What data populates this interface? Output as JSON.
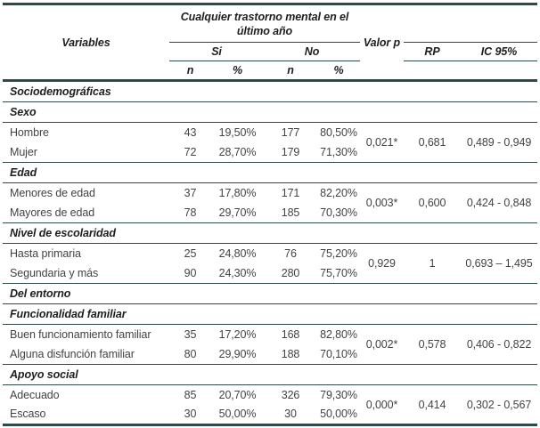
{
  "header": {
    "variables": "Variables",
    "group_title": "Cualquier trastorno mental en el último año",
    "si_label": "Si",
    "no_label": "No",
    "n_label": "n",
    "pct_label": "%",
    "valor_p_label": "Valor p",
    "rp_label": "RP",
    "ic_label": "IC 95%"
  },
  "rows": {
    "sec_sociodemograficas": "Sociodemográficas",
    "sec_sexo": "Sexo",
    "sexo": {
      "r1": {
        "label": "Hombre",
        "si_n": "43",
        "si_pct": "19,50%",
        "no_n": "177",
        "no_pct": "80,50%"
      },
      "r2": {
        "label": "Mujer",
        "si_n": "72",
        "si_pct": "28,70%",
        "no_n": "179",
        "no_pct": "71,30%"
      },
      "p": "0,021*",
      "rp": "0,681",
      "ic": "0,489 - 0,949"
    },
    "sec_edad": "Edad",
    "edad": {
      "r1": {
        "label": "Menores de edad",
        "si_n": "37",
        "si_pct": "17,80%",
        "no_n": "171",
        "no_pct": "82,20%"
      },
      "r2": {
        "label": "Mayores de edad",
        "si_n": "78",
        "si_pct": "29,70%",
        "no_n": "185",
        "no_pct": "70,30%"
      },
      "p": "0,003*",
      "rp": "0,600",
      "ic": "0,424 - 0,848"
    },
    "sec_escolaridad": "Nivel de escolaridad",
    "escolaridad": {
      "r1": {
        "label": "Hasta primaria",
        "si_n": "25",
        "si_pct": "24,80%",
        "no_n": "76",
        "no_pct": "75,20%"
      },
      "r2": {
        "label": "Segundaria y más",
        "si_n": "90",
        "si_pct": "24,30%",
        "no_n": "280",
        "no_pct": "75,70%"
      },
      "p": "0,929",
      "rp": "1",
      "ic": "0,693 – 1,495"
    },
    "sec_entorno": "Del entorno",
    "sec_funcionalidad": "Funcionalidad familiar",
    "funcionalidad": {
      "r1": {
        "label": "Buen funcionamiento familiar",
        "si_n": "35",
        "si_pct": "17,20%",
        "no_n": "168",
        "no_pct": "82,80%"
      },
      "r2": {
        "label": "Alguna disfunción familiar",
        "si_n": "80",
        "si_pct": "29,90%",
        "no_n": "188",
        "no_pct": "70,10%"
      },
      "p": "0,002*",
      "rp": "0,578",
      "ic": "0,406 - 0,822"
    },
    "sec_apoyo": "Apoyo social",
    "apoyo": {
      "r1": {
        "label": "Adecuado",
        "si_n": "85",
        "si_pct": "20,70%",
        "no_n": "326",
        "no_pct": "79,30%"
      },
      "r2": {
        "label": "Escaso",
        "si_n": "30",
        "si_pct": "50,00%",
        "no_n": "30",
        "no_pct": "50,00%"
      },
      "p": "0,000*",
      "rp": "0,414",
      "ic": "0,302 - 0,567"
    }
  },
  "colors": {
    "rule": "#2e4947",
    "header_text": "#1e1e1e",
    "body_text": "#434343",
    "background": "#ffffff"
  }
}
